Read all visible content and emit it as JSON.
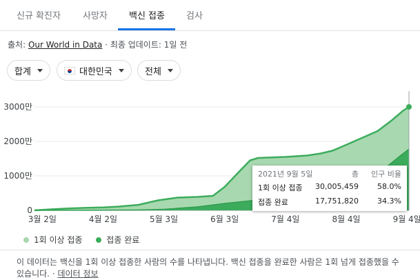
{
  "tabs": [
    {
      "label": "신규 확진자"
    },
    {
      "label": "사망자"
    },
    {
      "label": "백신 접종"
    },
    {
      "label": "검사"
    }
  ],
  "active_tab": 2,
  "source": {
    "prefix": "출처:",
    "link": "Our World in Data",
    "suffix": "· 최종 업데이트: 1일 전"
  },
  "filters": {
    "measure": "합계",
    "country": "대한민국",
    "scope": "전체"
  },
  "colors": {
    "one_dose": "#a8d8b0",
    "full": "#3cac5c",
    "line_full": "#2e9e4f",
    "tab_accent": "#1a73e8"
  },
  "chart_data": {
    "type": "area",
    "x_tick_labels": [
      "3월 2일",
      "4월 2일",
      "5월 3일",
      "6월 3일",
      "7월 4일",
      "8월 4일",
      "9월 4일"
    ],
    "y_tick_labels": [
      "0",
      "1000만",
      "2000만",
      "3000만"
    ],
    "ylim": [
      0,
      33000000
    ],
    "xlim": [
      "2021-02-26",
      "2021-09-05"
    ],
    "series": [
      {
        "name": "1회 이상 접종",
        "points": [
          [
            "2021-02-26",
            0
          ],
          [
            "2021-03-05",
            250000
          ],
          [
            "2021-03-15",
            550000
          ],
          [
            "2021-03-25",
            750000
          ],
          [
            "2021-04-02",
            850000
          ],
          [
            "2021-04-10",
            1100000
          ],
          [
            "2021-04-20",
            1600000
          ],
          [
            "2021-04-30",
            2900000
          ],
          [
            "2021-05-10",
            3700000
          ],
          [
            "2021-05-20",
            3900000
          ],
          [
            "2021-05-28",
            4200000
          ],
          [
            "2021-06-03",
            6800000
          ],
          [
            "2021-06-10",
            11000000
          ],
          [
            "2021-06-16",
            14500000
          ],
          [
            "2021-06-20",
            15200000
          ],
          [
            "2021-07-04",
            15500000
          ],
          [
            "2021-07-15",
            15900000
          ],
          [
            "2021-07-22",
            16500000
          ],
          [
            "2021-07-28",
            17300000
          ],
          [
            "2021-08-04",
            19000000
          ],
          [
            "2021-08-12",
            21000000
          ],
          [
            "2021-08-20",
            23000000
          ],
          [
            "2021-08-27",
            26000000
          ],
          [
            "2021-09-02",
            28900000
          ],
          [
            "2021-09-05",
            30005459
          ]
        ]
      },
      {
        "name": "접종 완료",
        "points": [
          [
            "2021-02-26",
            0
          ],
          [
            "2021-03-15",
            10000
          ],
          [
            "2021-04-02",
            50000
          ],
          [
            "2021-04-20",
            100000
          ],
          [
            "2021-05-03",
            300000
          ],
          [
            "2021-05-20",
            1000000
          ],
          [
            "2021-06-03",
            2000000
          ],
          [
            "2021-06-20",
            3000000
          ],
          [
            "2021-07-04",
            4400000
          ],
          [
            "2021-07-20",
            6000000
          ],
          [
            "2021-08-04",
            7800000
          ],
          [
            "2021-08-20",
            10500000
          ],
          [
            "2021-09-01",
            16000000
          ],
          [
            "2021-09-05",
            17751820
          ]
        ]
      }
    ],
    "tooltip": {
      "date": "2021년 9월 5일",
      "col_total": "총",
      "col_ratio": "인구 비율",
      "rows": [
        {
          "label": "1회 이상 접종",
          "value": "30,005,459",
          "ratio": "58.0%"
        },
        {
          "label": "접종 완료",
          "value": "17,751,820",
          "ratio": "34.3%"
        }
      ]
    },
    "legend": [
      "1회 이상 접종",
      "접종 완료"
    ],
    "legend_position": "bottom-left"
  },
  "note": {
    "text": "이 데이터는 백신을 1회 이상 접종한 사람의 수를 나타냅니다. 백신 접종을 완료한 사람은 1회 넘게 접종했을 수 있습니다.",
    "separator": "·",
    "link": "데이터 정보"
  }
}
